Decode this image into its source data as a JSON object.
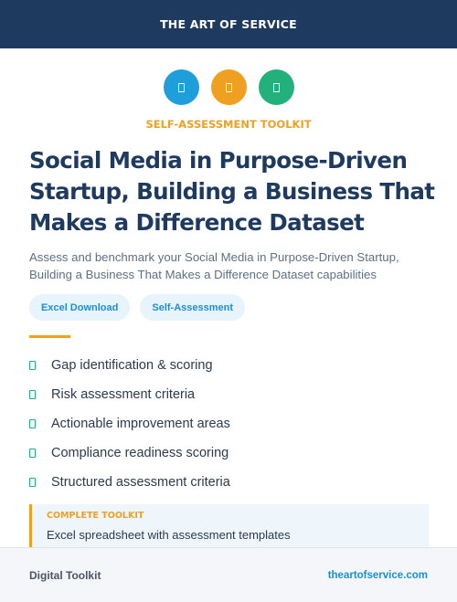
{
  "header": {
    "brand": "THE ART OF SERVICE"
  },
  "icons": [
    {
      "name": "document-icon",
      "color": "#1e9fdc"
    },
    {
      "name": "document-icon",
      "color": "#f0a020"
    },
    {
      "name": "document-icon",
      "color": "#22b07d"
    }
  ],
  "kicker": "SELF-ASSESSMENT TOOLKIT",
  "title": "Social Media in Purpose-Driven Startup, Building a Business That Makes a Difference Dataset",
  "subtitle": "Assess and benchmark your Social Media in Purpose-Driven Startup, Building a Business That Makes a Difference Dataset capabilities",
  "tags": [
    "Excel Download",
    "Self-Assessment"
  ],
  "features": [
    "Gap identification & scoring",
    "Risk assessment criteria",
    "Actionable improvement areas",
    "Compliance readiness scoring",
    "Structured assessment criteria"
  ],
  "callout": {
    "kicker": "COMPLETE TOOLKIT",
    "text": "Excel spreadsheet with assessment templates"
  },
  "footer": {
    "left": "Digital Toolkit",
    "right": "theartofservice.com"
  },
  "colors": {
    "navy": "#1e3a5f",
    "orange": "#f0a020",
    "blue": "#1e9fdc",
    "green": "#22b07d"
  }
}
